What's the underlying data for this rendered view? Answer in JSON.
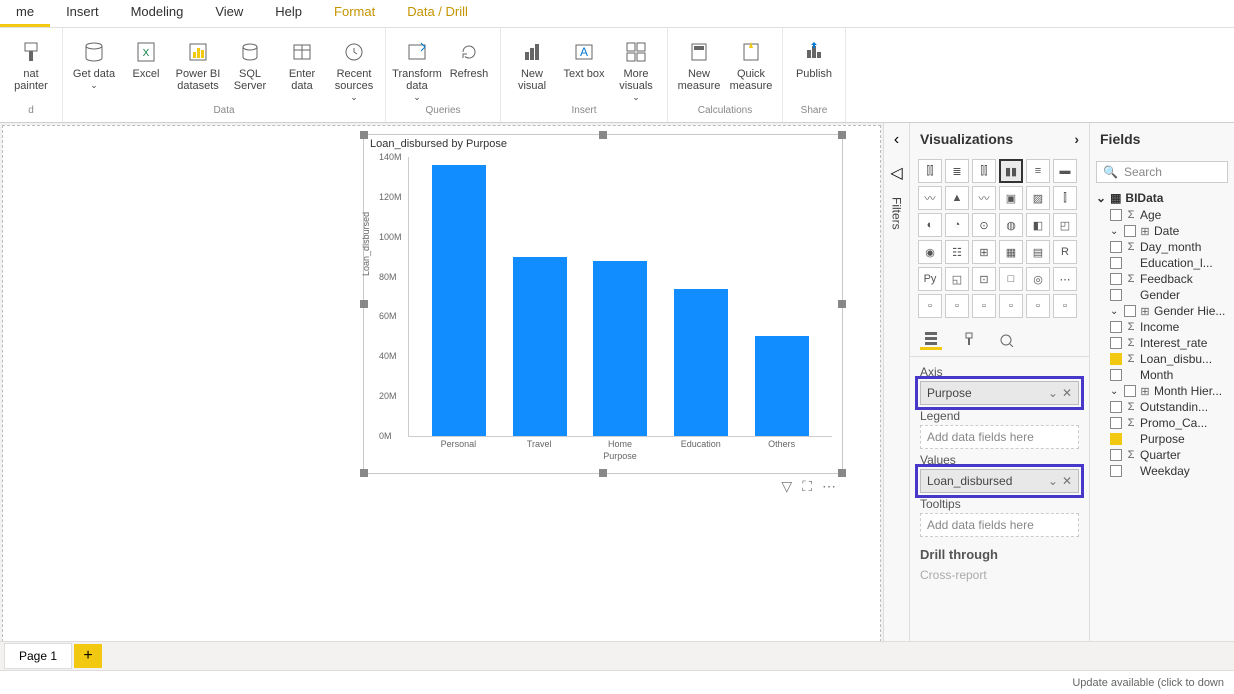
{
  "ribbon_tabs": [
    "me",
    "Insert",
    "Modeling",
    "View",
    "Help",
    "Format",
    "Data / Drill"
  ],
  "ribbon": {
    "clipboard": {
      "painter": "nat painter"
    },
    "data": {
      "label": "Data",
      "get_data": "Get data",
      "excel": "Excel",
      "pbi_ds": "Power BI datasets",
      "sql": "SQL Server",
      "enter": "Enter data",
      "recent": "Recent sources"
    },
    "queries": {
      "label": "Queries",
      "transform": "Transform data",
      "refresh": "Refresh"
    },
    "insert": {
      "label": "Insert",
      "new_visual": "New visual",
      "text_box": "Text box",
      "more": "More visuals"
    },
    "calc": {
      "label": "Calculations",
      "new_measure": "New measure",
      "quick": "Quick measure"
    },
    "share": {
      "label": "Share",
      "publish": "Publish"
    }
  },
  "chart": {
    "title": "Loan_disbursed by Purpose",
    "type": "bar",
    "y_label": "Loan_disbursed",
    "x_label": "Purpose",
    "ylim": [
      0,
      140
    ],
    "ytick_step": 20,
    "y_ticks": [
      "0M",
      "20M",
      "40M",
      "60M",
      "80M",
      "100M",
      "120M",
      "140M"
    ],
    "categories": [
      "Personal",
      "Travel",
      "Home",
      "Education",
      "Others"
    ],
    "values": [
      136,
      90,
      88,
      74,
      50
    ],
    "bar_color": "#118dff",
    "background": "#ffffff",
    "axis_color": "#cccccc",
    "title_fontsize": 11,
    "tick_fontsize": 9
  },
  "viz_pane": {
    "title": "Visualizations",
    "axis_label": "Axis",
    "axis_field": "Purpose",
    "legend_label": "Legend",
    "legend_placeholder": "Add data fields here",
    "values_label": "Values",
    "values_field": "Loan_disbursed",
    "tooltips_label": "Tooltips",
    "tooltips_placeholder": "Add data fields here",
    "drill_label": "Drill through",
    "cross_label": "Cross-report"
  },
  "filters_label": "Filters",
  "fields_pane": {
    "title": "Fields",
    "search_placeholder": "Search",
    "table": "BIData",
    "fields": [
      {
        "name": "Age",
        "sigma": true,
        "checked": false
      },
      {
        "name": "Date",
        "sigma": false,
        "checked": false,
        "hier": true
      },
      {
        "name": "Day_month",
        "sigma": true,
        "checked": false
      },
      {
        "name": "Education_l...",
        "sigma": false,
        "checked": false
      },
      {
        "name": "Feedback",
        "sigma": true,
        "checked": false
      },
      {
        "name": "Gender",
        "sigma": false,
        "checked": false
      },
      {
        "name": "Gender Hie...",
        "sigma": false,
        "checked": false,
        "hier": true
      },
      {
        "name": "Income",
        "sigma": true,
        "checked": false
      },
      {
        "name": "Interest_rate",
        "sigma": true,
        "checked": false
      },
      {
        "name": "Loan_disbu...",
        "sigma": true,
        "checked": true
      },
      {
        "name": "Month",
        "sigma": false,
        "checked": false
      },
      {
        "name": "Month Hier...",
        "sigma": false,
        "checked": false,
        "hier": true
      },
      {
        "name": "Outstandin...",
        "sigma": true,
        "checked": false
      },
      {
        "name": "Promo_Ca...",
        "sigma": true,
        "checked": false
      },
      {
        "name": "Purpose",
        "sigma": false,
        "checked": true
      },
      {
        "name": "Quarter",
        "sigma": true,
        "checked": false
      },
      {
        "name": "Weekday",
        "sigma": false,
        "checked": false
      }
    ]
  },
  "page_tab": "Page 1",
  "status": "Update available (click to down"
}
